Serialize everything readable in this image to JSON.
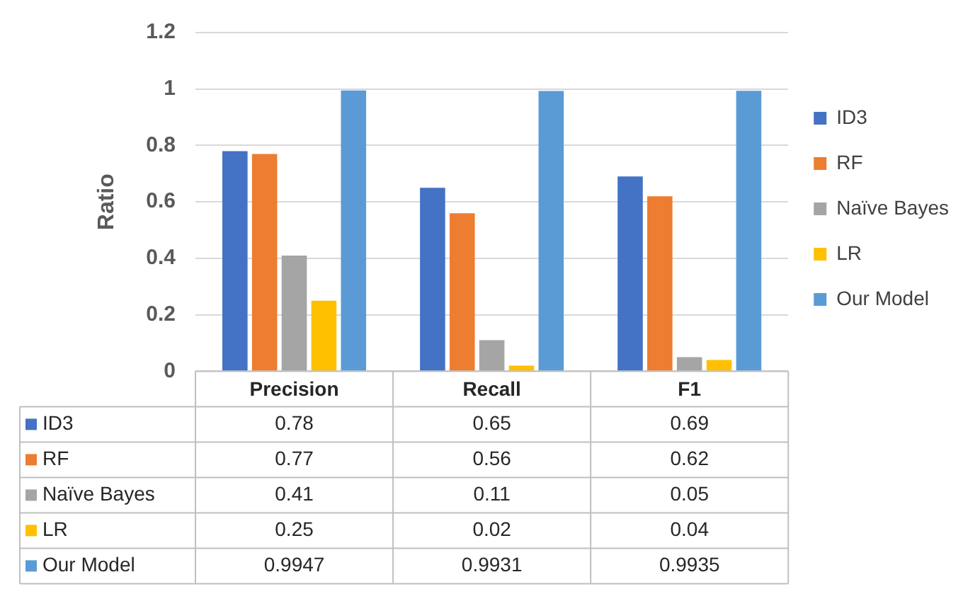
{
  "chart_data": {
    "type": "bar",
    "ylabel": "Ratio",
    "categories": [
      "Precision",
      "Recall",
      "F1"
    ],
    "series": [
      {
        "name": "ID3",
        "color": "#4472c4",
        "values": [
          0.78,
          0.65,
          0.69
        ]
      },
      {
        "name": "RF",
        "color": "#ed7d31",
        "values": [
          0.77,
          0.56,
          0.62
        ]
      },
      {
        "name": "Naïve Bayes",
        "color": "#a5a5a5",
        "values": [
          0.41,
          0.11,
          0.05
        ]
      },
      {
        "name": "LR",
        "color": "#ffc000",
        "values": [
          0.25,
          0.02,
          0.04
        ]
      },
      {
        "name": "Our Model",
        "color": "#5b9bd5",
        "values": [
          0.9947,
          0.9931,
          0.9935
        ]
      }
    ],
    "ylim": [
      0,
      1.2
    ],
    "yticks": [
      0,
      0.2,
      0.4,
      0.6,
      0.8,
      1,
      1.2
    ],
    "grid": "y",
    "legend": "right",
    "data_labels": true
  }
}
